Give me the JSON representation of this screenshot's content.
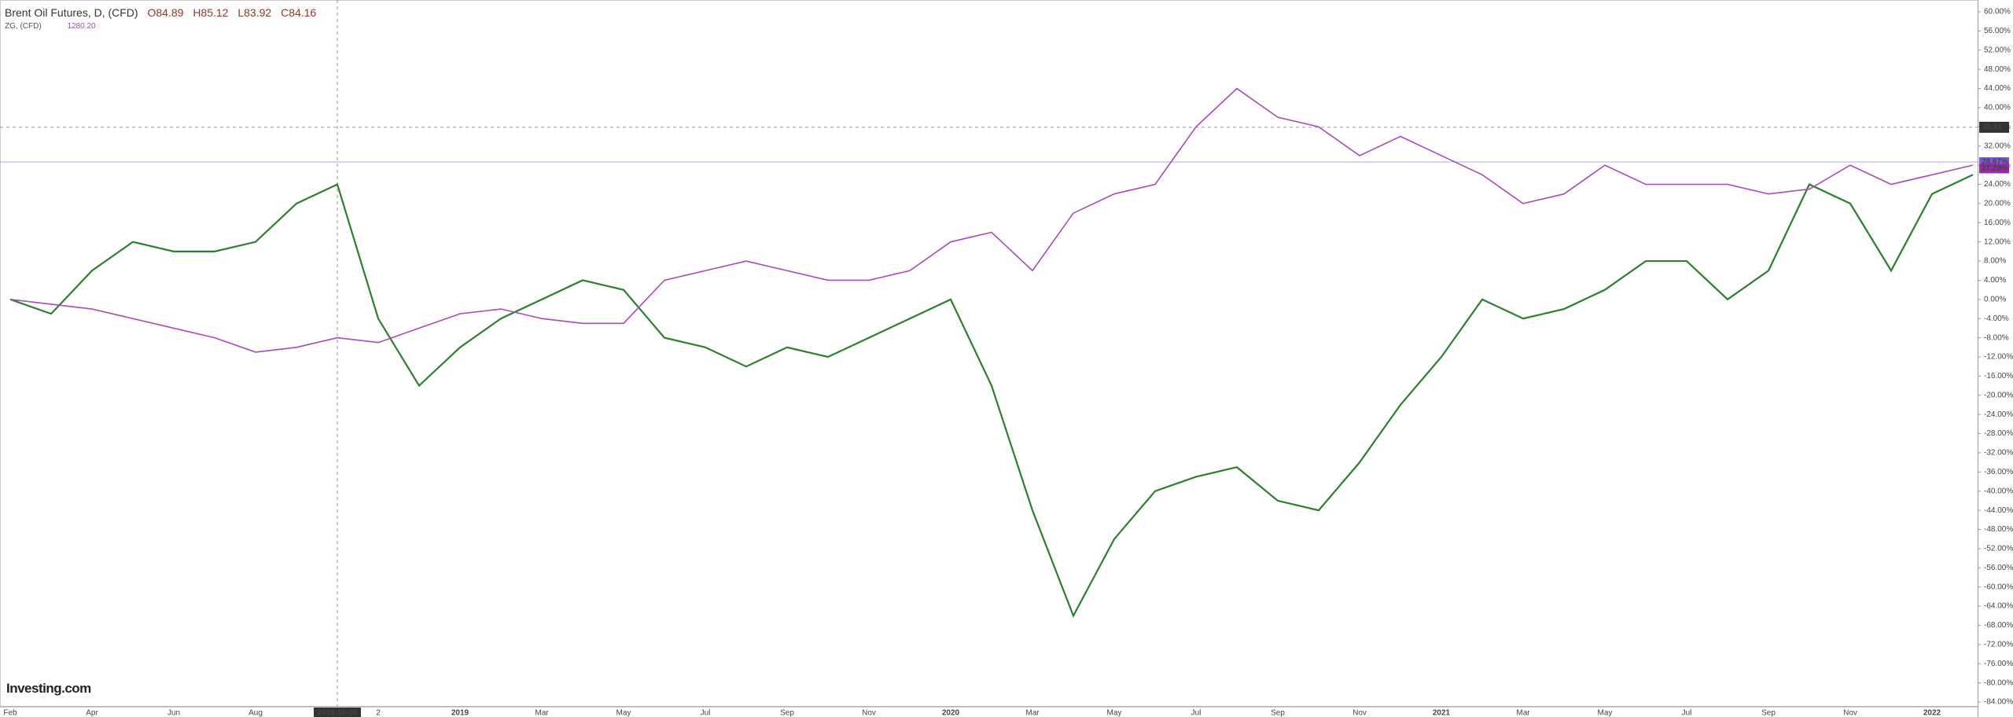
{
  "chart_data": {
    "type": "line",
    "header": {
      "title": "Brent Oil Futures, D, (CFD)",
      "open": "O84.89",
      "high": "H85.12",
      "low": "L83.92",
      "close": "C84.16",
      "compare_name": "ZG, (CFD)",
      "compare_value": "1280.20"
    },
    "brand": "Investing.com",
    "categories": [
      "Feb",
      null,
      "Apr",
      null,
      "Jun",
      null,
      "Aug",
      null,
      "2018-10-05",
      "2",
      null,
      "2019",
      null,
      "Mar",
      null,
      "May",
      null,
      "Jul",
      null,
      "Sep",
      null,
      "Nov",
      null,
      "2020",
      null,
      "Mar",
      null,
      "May",
      null,
      "Jul",
      null,
      "Sep",
      null,
      "Nov",
      null,
      "2021",
      null,
      "Mar",
      null,
      "May",
      null,
      "Jul",
      null,
      "Sep",
      null,
      "Nov",
      null,
      "2022",
      null
    ],
    "series": [
      {
        "name": "Brent Oil Futures",
        "color": "#2e7d32",
        "values": [
          0,
          -3,
          6,
          12,
          10,
          10,
          12,
          20,
          24,
          -4,
          -18,
          -10,
          -4,
          0,
          4,
          2,
          -8,
          -10,
          -14,
          -10,
          -12,
          -8,
          -4,
          0,
          -18,
          -44,
          -66,
          -50,
          -40,
          -37,
          -35,
          -42,
          -44,
          -34,
          -22,
          -12,
          0,
          -4,
          -2,
          2,
          8,
          8,
          0,
          6,
          24,
          20,
          6,
          22,
          26
        ]
      },
      {
        "name": "ZG",
        "color": "#a050b0",
        "values": [
          0,
          -1,
          -2,
          -4,
          -6,
          -8,
          -11,
          -10,
          -8,
          -9,
          -6,
          -3,
          -2,
          -4,
          -5,
          -5,
          4,
          6,
          8,
          6,
          4,
          4,
          6,
          12,
          14,
          6,
          18,
          22,
          24,
          36,
          44,
          38,
          36,
          30,
          34,
          30,
          26,
          20,
          22,
          28,
          24,
          24,
          24,
          22,
          23,
          28,
          24,
          26,
          28
        ]
      }
    ],
    "last_labels": [
      {
        "value": 28.67,
        "label": "28.67%",
        "color": "#7b5cd6"
      },
      {
        "value": 27.29,
        "label": "27.29%",
        "color": "#9c27b0"
      }
    ],
    "crosshair": {
      "value": 35.91,
      "label": "35.91"
    },
    "ylim": [
      -84,
      60
    ],
    "yticks": [
      {
        "value": 60,
        "label": "60.00%"
      },
      {
        "value": 56,
        "label": "56.00%"
      },
      {
        "value": 52,
        "label": "52.00%"
      },
      {
        "value": 48,
        "label": "48.00%"
      },
      {
        "value": 44,
        "label": "44.00%"
      },
      {
        "value": 40,
        "label": "40.00%"
      },
      {
        "value": 36,
        "label": "36.00%"
      },
      {
        "value": 32,
        "label": "32.00%"
      },
      {
        "value": 28,
        "label": "28.00%"
      },
      {
        "value": 24,
        "label": "24.00%"
      },
      {
        "value": 20,
        "label": "20.00%"
      },
      {
        "value": 16,
        "label": "16.00%"
      },
      {
        "value": 12,
        "label": "12.00%"
      },
      {
        "value": 8,
        "label": "8.00%"
      },
      {
        "value": 4,
        "label": "4.00%"
      },
      {
        "value": 0,
        "label": "0.00%"
      },
      {
        "value": -4,
        "label": "-4.00%"
      },
      {
        "value": -8,
        "label": "-8.00%"
      },
      {
        "value": -12,
        "label": "-12.00%"
      },
      {
        "value": -16,
        "label": "-16.00%"
      },
      {
        "value": -20,
        "label": "-20.00%"
      },
      {
        "value": -24,
        "label": "-24.00%"
      },
      {
        "value": -28,
        "label": "-28.00%"
      },
      {
        "value": -32,
        "label": "-32.00%"
      },
      {
        "value": -36,
        "label": "-36.00%"
      },
      {
        "value": -40,
        "label": "-40.00%"
      },
      {
        "value": -44,
        "label": "-44.00%"
      },
      {
        "value": -48,
        "label": "-48.00%"
      },
      {
        "value": -52,
        "label": "-52.00%"
      },
      {
        "value": -56,
        "label": "-56.00%"
      },
      {
        "value": -60,
        "label": "-60.00%"
      },
      {
        "value": -64,
        "label": "-64.00%"
      },
      {
        "value": -68,
        "label": "-68.00%"
      },
      {
        "value": -72,
        "label": "-72.00%"
      },
      {
        "value": -76,
        "label": "-76.00%"
      },
      {
        "value": -80,
        "label": "-80.00%"
      },
      {
        "value": -84,
        "label": "-84.00%"
      }
    ],
    "grid": false
  }
}
